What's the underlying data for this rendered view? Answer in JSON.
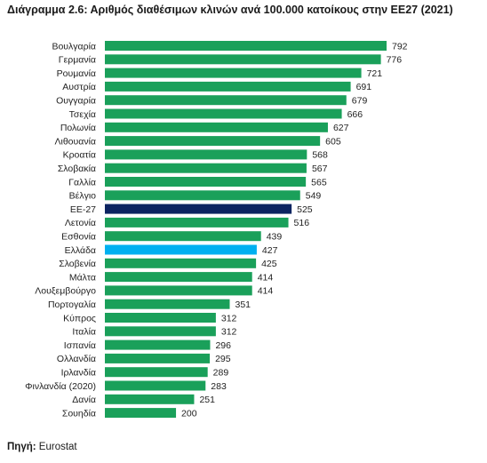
{
  "title": "Διάγραμμα 2.6: Αριθμός διαθέσιμων κλινών ανά 100.000 κατοίκους στην ΕΕ27 (2021)",
  "source_label": "Πηγή:",
  "source_value": "Eurostat",
  "colors": {
    "default": "#1aa05a",
    "eu": "#0c2461",
    "greece": "#00b0f0"
  },
  "chart_data": {
    "type": "bar",
    "orientation": "horizontal",
    "title": "Διάγραμμα 2.6: Αριθμός διαθέσιμων κλινών ανά 100.000 κατοίκους στην ΕΕ27 (2021)",
    "xlabel": "",
    "ylabel": "",
    "xlim": [
      0,
      792
    ],
    "grid": false,
    "legend": "none",
    "categories": [
      "Βουλγαρία",
      "Γερμανία",
      "Ρουμανία",
      "Αυστρία",
      "Ουγγαρία",
      "Τσεχία",
      "Πολωνία",
      "Λιθουανία",
      "Κροατία",
      "Σλοβακία",
      "Γαλλία",
      "Βέλγιο",
      "ΕΕ-27",
      "Λετονία",
      "Εσθονία",
      "Ελλάδα",
      "Σλοβενία",
      "Μάλτα",
      "Λουξεμβούργο",
      "Πορτογαλία",
      "Κύπρος",
      "Ιταλία",
      "Ισπανία",
      "Ολλανδία",
      "Ιρλανδία",
      "Φινλανδία (2020)",
      "Δανία",
      "Σουηδία"
    ],
    "values": [
      792,
      776,
      721,
      691,
      679,
      666,
      627,
      605,
      568,
      567,
      565,
      549,
      525,
      516,
      439,
      427,
      425,
      414,
      414,
      351,
      312,
      312,
      296,
      295,
      289,
      283,
      251,
      200
    ],
    "highlight": {
      "ΕΕ-27": "eu",
      "Ελλάδα": "greece"
    }
  }
}
